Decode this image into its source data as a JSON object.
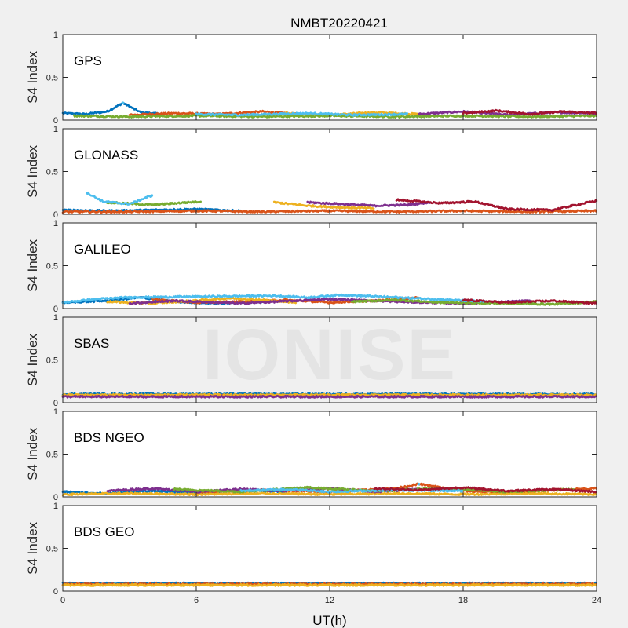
{
  "figure": {
    "title": "NMBT20220421",
    "xlabel": "UT(h)",
    "watermark": "IONISE"
  },
  "series_colors": [
    "#0072BD",
    "#D95319",
    "#EDB120",
    "#7E2F8E",
    "#77AC30",
    "#4DBEEE",
    "#A2142F"
  ],
  "chart_data": [
    {
      "type": "scatter",
      "panel_label": "GPS",
      "ylabel": "S4 Index",
      "xlim": [
        0,
        24
      ],
      "ylim": [
        0,
        1
      ],
      "xticks": [
        0,
        6,
        12,
        18,
        24
      ],
      "yticks": [
        0,
        0.5,
        1
      ],
      "typical_s4": [
        0.03,
        0.12
      ],
      "notable_points": [
        {
          "x": 2.7,
          "y": 0.2
        }
      ],
      "series": [
        {
          "x": [
            0.0,
            1.0,
            2.0,
            2.7,
            3.5,
            4.5
          ],
          "y": [
            0.08,
            0.07,
            0.1,
            0.2,
            0.09,
            0.07
          ]
        },
        {
          "x": [
            3.0,
            5.0,
            7.0,
            9.0,
            10.5
          ],
          "y": [
            0.06,
            0.08,
            0.07,
            0.1,
            0.07
          ]
        },
        {
          "x": [
            10.0,
            12.0,
            14.0,
            16.0
          ],
          "y": [
            0.08,
            0.06,
            0.09,
            0.07
          ]
        },
        {
          "x": [
            16.0,
            18.0,
            20.0,
            22.0,
            24.0
          ],
          "y": [
            0.07,
            0.1,
            0.06,
            0.09,
            0.08
          ]
        },
        {
          "x": [
            0.5,
            3.0,
            6.0,
            9.0,
            12.0,
            15.0,
            18.0,
            21.0,
            24.0
          ],
          "y": [
            0.05,
            0.04,
            0.05,
            0.04,
            0.05,
            0.04,
            0.05,
            0.04,
            0.05
          ]
        },
        {
          "x": [
            6.0,
            8.0,
            11.0,
            13.0,
            15.5
          ],
          "y": [
            0.07,
            0.06,
            0.08,
            0.06,
            0.07
          ]
        },
        {
          "x": [
            18.0,
            19.5,
            21.0,
            22.5,
            24.0
          ],
          "y": [
            0.08,
            0.11,
            0.07,
            0.1,
            0.08
          ]
        }
      ]
    },
    {
      "type": "scatter",
      "panel_label": "GLONASS",
      "ylabel": "S4 Index",
      "xlim": [
        0,
        24
      ],
      "ylim": [
        0,
        1
      ],
      "xticks": [
        0,
        6,
        12,
        18,
        24
      ],
      "yticks": [
        0,
        0.5,
        1
      ],
      "typical_s4": [
        0.03,
        0.2
      ],
      "notable_points": [
        {
          "x": 1.1,
          "y": 0.25
        },
        {
          "x": 4.0,
          "y": 0.22
        }
      ],
      "series": [
        {
          "x": [
            0.0,
            2.0,
            4.0,
            6.0,
            8.0
          ],
          "y": [
            0.05,
            0.04,
            0.05,
            0.06,
            0.04
          ]
        },
        {
          "x": [
            0.0,
            3.0,
            6.0,
            9.0,
            12.0,
            15.0,
            18.0,
            21.0,
            24.0
          ],
          "y": [
            0.03,
            0.03,
            0.04,
            0.03,
            0.04,
            0.03,
            0.04,
            0.03,
            0.04
          ]
        },
        {
          "x": [
            9.5,
            11.0,
            12.5,
            14.0
          ],
          "y": [
            0.14,
            0.1,
            0.08,
            0.07
          ]
        },
        {
          "x": [
            11.0,
            12.5,
            14.0,
            15.5,
            16.5
          ],
          "y": [
            0.14,
            0.12,
            0.1,
            0.11,
            0.14
          ]
        },
        {
          "x": [
            2.0,
            4.0,
            6.2
          ],
          "y": [
            0.14,
            0.11,
            0.15
          ]
        },
        {
          "x": [
            1.1,
            1.8,
            3.0,
            4.0
          ],
          "y": [
            0.25,
            0.15,
            0.12,
            0.22
          ]
        },
        {
          "x": [
            15.0,
            17.0,
            18.5,
            20.0,
            22.0,
            24.0
          ],
          "y": [
            0.17,
            0.13,
            0.15,
            0.06,
            0.05,
            0.16
          ]
        }
      ]
    },
    {
      "type": "scatter",
      "panel_label": "GALILEO",
      "ylabel": "S4 Index",
      "xlim": [
        0,
        24
      ],
      "ylim": [
        0,
        1
      ],
      "xticks": [
        0,
        6,
        12,
        18,
        24
      ],
      "yticks": [
        0,
        0.5,
        1
      ],
      "typical_s4": [
        0.04,
        0.15
      ],
      "notable_points": [],
      "series": [
        {
          "x": [
            0.0,
            2.0,
            3.5,
            5.0,
            7.0,
            9.0
          ],
          "y": [
            0.07,
            0.09,
            0.13,
            0.08,
            0.06,
            0.08
          ]
        },
        {
          "x": [
            4.0,
            6.0,
            8.0,
            10.0,
            12.0,
            14.0,
            16.0
          ],
          "y": [
            0.11,
            0.07,
            0.08,
            0.1,
            0.07,
            0.09,
            0.13
          ]
        },
        {
          "x": [
            2.0,
            4.0,
            7.5,
            9.0,
            10.5
          ],
          "y": [
            0.08,
            0.06,
            0.12,
            0.1,
            0.07
          ]
        },
        {
          "x": [
            3.0,
            5.0,
            8.0,
            12.0,
            15.0,
            18.0,
            21.0
          ],
          "y": [
            0.06,
            0.09,
            0.06,
            0.11,
            0.08,
            0.06,
            0.09
          ]
        },
        {
          "x": [
            13.0,
            15.0,
            17.0,
            20.0,
            22.0,
            24.0
          ],
          "y": [
            0.08,
            0.1,
            0.07,
            0.06,
            0.05,
            0.08
          ]
        },
        {
          "x": [
            0.0,
            1.5,
            2.8,
            9.5,
            11.0,
            12.5,
            17.5,
            19.0
          ],
          "y": [
            0.07,
            0.11,
            0.13,
            0.15,
            0.13,
            0.16,
            0.1,
            0.08
          ]
        },
        {
          "x": [
            18.0,
            20.0,
            22.0,
            24.0
          ],
          "y": [
            0.1,
            0.07,
            0.09,
            0.06
          ]
        }
      ]
    },
    {
      "type": "scatter",
      "panel_label": "SBAS",
      "ylabel": "S4 Index",
      "xlim": [
        0,
        24
      ],
      "ylim": [
        0,
        1
      ],
      "xticks": [
        0,
        6,
        12,
        18,
        24
      ],
      "yticks": [
        0,
        0.5,
        1
      ],
      "typical_s4": [
        0.06,
        0.12
      ],
      "notable_points": [],
      "series": [
        {
          "x": [
            0,
            24
          ],
          "y": [
            0.1,
            0.1
          ]
        },
        {
          "x": [
            0,
            24
          ],
          "y": [
            0.08,
            0.08
          ]
        },
        {
          "x": [
            0,
            24
          ],
          "y": [
            0.09,
            0.09
          ]
        },
        {
          "x": [
            0,
            24
          ],
          "y": [
            0.07,
            0.07
          ]
        }
      ]
    },
    {
      "type": "scatter",
      "panel_label": "BDS NGEO",
      "ylabel": "S4 Index",
      "xlim": [
        0,
        24
      ],
      "ylim": [
        0,
        1
      ],
      "xticks": [
        0,
        6,
        12,
        18,
        24
      ],
      "yticks": [
        0,
        0.5,
        1
      ],
      "typical_s4": [
        0.03,
        0.15
      ],
      "notable_points": [
        {
          "x": 16.0,
          "y": 0.15
        }
      ],
      "series": [
        {
          "x": [
            0.0,
            2.0,
            4.0,
            6.0,
            8.0,
            10.0
          ],
          "y": [
            0.06,
            0.04,
            0.07,
            0.05,
            0.08,
            0.06
          ]
        },
        {
          "x": [
            6.0,
            9.0,
            12.0,
            15.0,
            16.0,
            18.0,
            20.0,
            22.0,
            24.0
          ],
          "y": [
            0.05,
            0.08,
            0.06,
            0.1,
            0.15,
            0.07,
            0.05,
            0.08,
            0.1
          ]
        },
        {
          "x": [
            0.0,
            3.0,
            6.0,
            9.0,
            12.0,
            15.0,
            18.0,
            21.0,
            24.0
          ],
          "y": [
            0.03,
            0.04,
            0.03,
            0.04,
            0.03,
            0.04,
            0.03,
            0.04,
            0.03
          ]
        },
        {
          "x": [
            2.0,
            4.0,
            6.0,
            8.0,
            10.0,
            12.0,
            14.0,
            16.0
          ],
          "y": [
            0.07,
            0.1,
            0.06,
            0.09,
            0.07,
            0.1,
            0.06,
            0.09
          ]
        },
        {
          "x": [
            5.0,
            8.0,
            11.0,
            14.0,
            17.0,
            20.0,
            23.0
          ],
          "y": [
            0.09,
            0.06,
            0.11,
            0.07,
            0.1,
            0.06,
            0.09
          ]
        },
        {
          "x": [
            8.0,
            10.0,
            12.0,
            15.0,
            18.0
          ],
          "y": [
            0.07,
            0.09,
            0.06,
            0.08,
            0.07
          ]
        },
        {
          "x": [
            14.0,
            16.0,
            18.0,
            20.0,
            22.0,
            24.0
          ],
          "y": [
            0.1,
            0.08,
            0.11,
            0.07,
            0.09,
            0.06
          ]
        }
      ]
    },
    {
      "type": "scatter",
      "panel_label": "BDS GEO",
      "ylabel": "S4 Index",
      "xlim": [
        0,
        24
      ],
      "ylim": [
        0,
        1
      ],
      "xticks": [
        0,
        6,
        12,
        18,
        24
      ],
      "yticks": [
        0,
        0.5,
        1
      ],
      "typical_s4": [
        0.06,
        0.1
      ],
      "notable_points": [],
      "series": [
        {
          "x": [
            0,
            24
          ],
          "y": [
            0.09,
            0.09
          ]
        },
        {
          "x": [
            0,
            24
          ],
          "y": [
            0.08,
            0.08
          ]
        },
        {
          "x": [
            0,
            24
          ],
          "y": [
            0.07,
            0.07
          ]
        }
      ]
    }
  ]
}
